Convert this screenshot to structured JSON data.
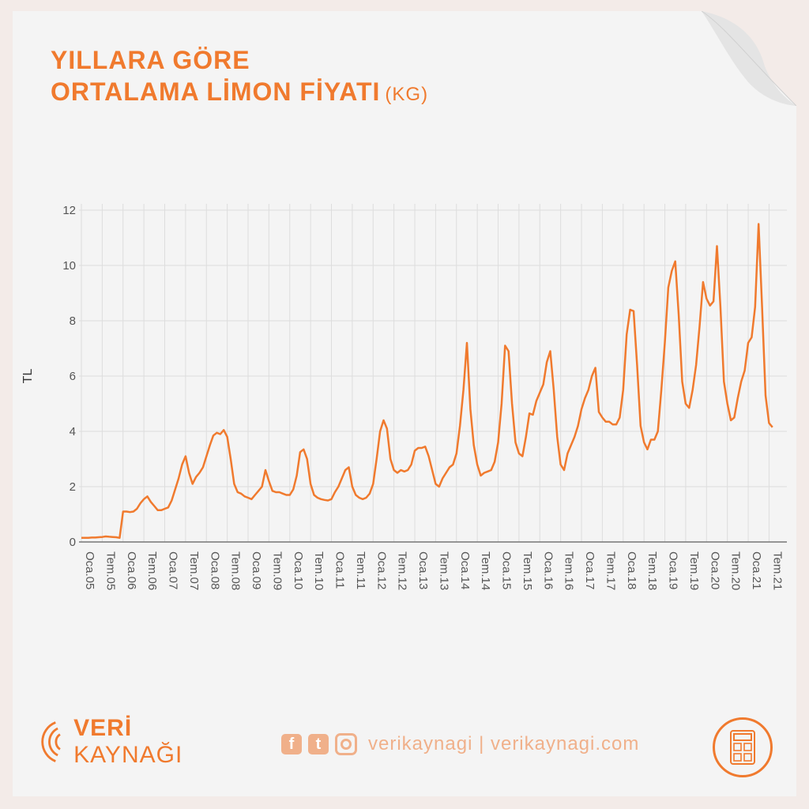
{
  "title": {
    "line1": "YILLARA GÖRE",
    "line2": "ORTALAMA LİMON FİYATI",
    "unit": "(KG)"
  },
  "brand": {
    "name_bold": "VERİ",
    "name_rest": "KAYNAĞI"
  },
  "social": {
    "handle": "verikaynagi | verikaynagi.com",
    "icons": [
      "facebook-icon",
      "twitter-icon",
      "instagram-icon"
    ]
  },
  "colors": {
    "accent": "#f07a2e",
    "line": "#f07a2e",
    "grid": "#dddddd",
    "axis_text": "#555555"
  },
  "chart_data": {
    "type": "line",
    "title": "YILLARA GÖRE ORTALAMA LİMON FİYATI (KG)",
    "xlabel": "",
    "ylabel": "TL",
    "ylim": [
      0,
      12
    ],
    "yticks": [
      0,
      2,
      4,
      6,
      8,
      10,
      12
    ],
    "x_start": "2005-01",
    "x_end": "2021-12",
    "grid": true,
    "tick_labels": [
      "Oca.05",
      "Tem.05",
      "Oca.06",
      "Tem.06",
      "Oca.07",
      "Tem.07",
      "Oca.08",
      "Tem.08",
      "Oca.09",
      "Tem.09",
      "Oca.10",
      "Tem.10",
      "Oca.11",
      "Tem.11",
      "Oca.12",
      "Tem.12",
      "Oca.13",
      "Tem.13",
      "Oca.14",
      "Tem.14",
      "Oca.15",
      "Tem.15",
      "Oca.16",
      "Tem.16",
      "Oca.17",
      "Tem.17",
      "Oca.18",
      "Tem.18",
      "Oca.19",
      "Tem.19",
      "Oca.20",
      "Tem.20",
      "Oca.21",
      "Tem.21"
    ],
    "series": [
      {
        "values": [
          0.15,
          0.15,
          0.15,
          0.16,
          0.16,
          0.17,
          0.18,
          0.2,
          0.19,
          0.18,
          0.17,
          0.15,
          1.1,
          1.1,
          1.08,
          1.1,
          1.2,
          1.4,
          1.55,
          1.65,
          1.45,
          1.3,
          1.15,
          1.15,
          1.2,
          1.25,
          1.5,
          1.9,
          2.3,
          2.8,
          3.1,
          2.5,
          2.1,
          2.35,
          2.5,
          2.7,
          3.1,
          3.5,
          3.85,
          3.95,
          3.9,
          4.05,
          3.8,
          3.0,
          2.1,
          1.8,
          1.75,
          1.65,
          1.6,
          1.55,
          1.7,
          1.85,
          2.0,
          2.6,
          2.2,
          1.85,
          1.8,
          1.8,
          1.75,
          1.7,
          1.7,
          1.9,
          2.4,
          3.25,
          3.35,
          3.0,
          2.1,
          1.7,
          1.6,
          1.55,
          1.52,
          1.5,
          1.55,
          1.8,
          2.0,
          2.3,
          2.6,
          2.7,
          2.0,
          1.7,
          1.6,
          1.55,
          1.6,
          1.75,
          2.1,
          3.0,
          4.0,
          4.4,
          4.1,
          3.0,
          2.6,
          2.5,
          2.6,
          2.55,
          2.6,
          2.8,
          3.3,
          3.4,
          3.4,
          3.45,
          3.1,
          2.6,
          2.1,
          2.0,
          2.3,
          2.5,
          2.7,
          2.8,
          3.2,
          4.2,
          5.5,
          7.2,
          4.8,
          3.5,
          2.8,
          2.4,
          2.5,
          2.55,
          2.6,
          2.9,
          3.6,
          5.0,
          7.1,
          6.9,
          5.0,
          3.6,
          3.2,
          3.1,
          3.8,
          4.65,
          4.6,
          5.1,
          5.4,
          5.7,
          6.5,
          6.9,
          5.5,
          3.8,
          2.8,
          2.6,
          3.2,
          3.5,
          3.8,
          4.2,
          4.8,
          5.2,
          5.5,
          6.0,
          6.3,
          4.7,
          4.5,
          4.35,
          4.35,
          4.25,
          4.25,
          4.5,
          5.5,
          7.5,
          8.4,
          8.35,
          6.4,
          4.2,
          3.6,
          3.35,
          3.7,
          3.7,
          4.0,
          5.5,
          7.2,
          9.2,
          9.8,
          10.15,
          8.2,
          5.8,
          5.0,
          4.85,
          5.5,
          6.4,
          7.8,
          9.4,
          8.8,
          8.55,
          8.7,
          10.7,
          8.5,
          5.8,
          5.0,
          4.4,
          4.5,
          5.2,
          5.8,
          6.2,
          7.2,
          7.4,
          8.5,
          11.5,
          8.5,
          5.3,
          4.3,
          4.15
        ]
      }
    ]
  }
}
